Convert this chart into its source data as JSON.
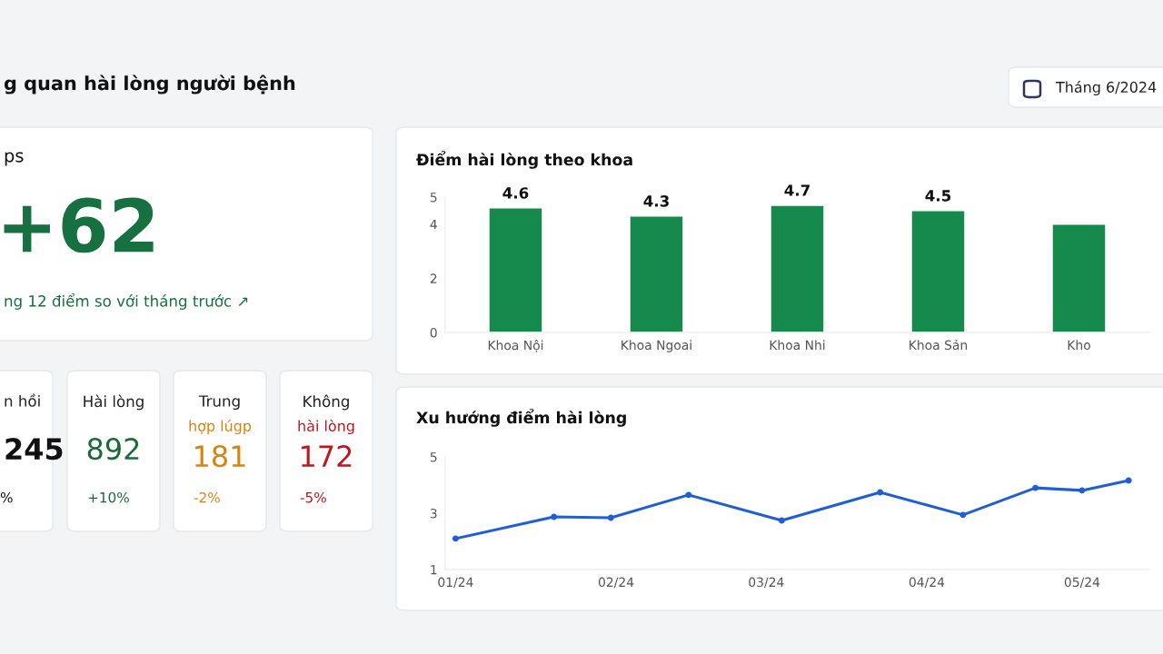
{
  "chart_data": [
    {
      "type": "other",
      "title": "g quan hài lòng người bệnh",
      "annotations": [
        "Tháng 6/2024"
      ]
    },
    {
      "type": "other",
      "title": "ps",
      "annotations": [
        "+62",
        "ng 12 điểm so với tháng trước ↗"
      ]
    },
    {
      "type": "other",
      "title": "n hồi",
      "annotations": [
        "245",
        "%"
      ]
    },
    {
      "type": "other",
      "title": "Hài lòng",
      "annotations": [
        "892",
        "+10%"
      ]
    },
    {
      "type": "other",
      "title": "Trung",
      "subtitle": "hợp lúgp",
      "annotations": [
        "181",
        "-2%"
      ]
    },
    {
      "type": "other",
      "title": "Không",
      "subtitle": "hài lòng",
      "annotations": [
        "172",
        "-5%"
      ]
    },
    {
      "type": "bar",
      "title": "Điểm hài lòng theo khoa",
      "categories": [
        "Khoa Nội",
        "Khoa Ngoai",
        "Khoa Nhi",
        "Khoa Sản",
        "Kho"
      ],
      "values": [
        4.6,
        4.3,
        4.7,
        4.5,
        4.0
      ],
      "value_labels": [
        "4.6",
        "4.3",
        "4.7",
        "4.5",
        null
      ],
      "color": "#168a4c",
      "ylim": [
        0,
        5
      ],
      "yticks": [
        0,
        2,
        4,
        5
      ],
      "grid": false
    },
    {
      "type": "line",
      "title": "Xu hướng điểm hài lòng",
      "x": [
        "2024-01-01",
        "2024-01-20",
        "2024-01-31",
        "2024-02-15",
        "2024-03-04",
        "2024-03-23",
        "2024-04-08",
        "2024-04-22",
        "2024-05-01",
        "2024-05-10"
      ],
      "values": [
        2.1,
        2.87,
        2.84,
        3.65,
        2.74,
        3.74,
        2.94,
        3.9,
        3.81,
        4.16
      ],
      "color": "#1f5fd6",
      "marker": "circle",
      "line_style": "solid",
      "xlim": [
        "2023-12-30",
        "2024-05-14"
      ],
      "xticks": [
        {
          "value": "2024-01",
          "label": "01/24"
        },
        {
          "value": "2024-02",
          "label": "02/24"
        },
        {
          "value": "2024-03",
          "label": "03/24"
        },
        {
          "value": "2024-04",
          "label": "04/24"
        },
        {
          "value": "2024-05",
          "label": "05/24"
        }
      ],
      "ylim": [
        1,
        5
      ],
      "yticks": [
        1,
        3,
        5
      ],
      "grid": false
    }
  ]
}
